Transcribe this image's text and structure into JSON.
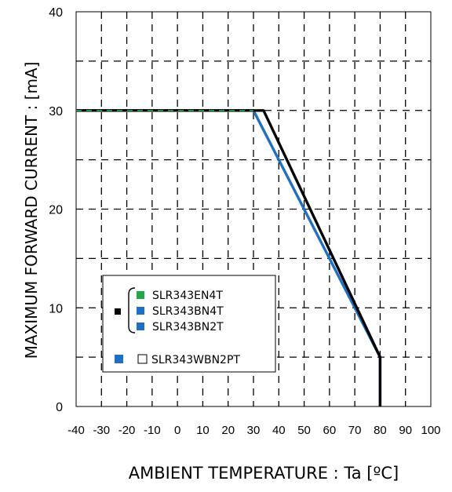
{
  "chart_data": {
    "type": "line",
    "xlabel": "AMBIENT TEMPERATURE : Ta [ºC]",
    "ylabel": "MAXIMUM FORWARD CURRENT :  [mA]",
    "xlim": [
      -40,
      100
    ],
    "ylim": [
      0,
      40
    ],
    "x_ticks": [
      -40,
      -30,
      -20,
      -10,
      0,
      10,
      20,
      30,
      40,
      50,
      60,
      70,
      80,
      90,
      100
    ],
    "x_tick_labels": [
      "-40",
      "-30",
      "-20",
      "-10",
      "0",
      "10",
      "20",
      "30",
      "40",
      "50",
      "60",
      "70",
      "80",
      "90",
      "100"
    ],
    "y_ticks": [
      0,
      10,
      20,
      30,
      40
    ],
    "y_tick_labels": [
      "0",
      "10",
      "20",
      "30",
      "40"
    ],
    "grid": "dashed",
    "legend_position": "lower-left",
    "series": [
      {
        "name": "SLR343EN4T / SLR343BN4T / SLR343BN2T",
        "color": "#000000",
        "points": [
          [
            -40,
            30
          ],
          [
            34,
            30
          ],
          [
            80,
            5
          ],
          [
            80,
            0
          ]
        ]
      },
      {
        "name": "SLR343WBN2PT",
        "color": "#1f6fc7",
        "points": [
          [
            -40,
            30
          ],
          [
            30,
            30
          ],
          [
            80,
            5
          ],
          [
            80,
            0
          ]
        ]
      },
      {
        "name": "",
        "color": "#22a846",
        "points": [
          [
            -40,
            30
          ],
          [
            30,
            30
          ]
        ]
      }
    ],
    "legend": {
      "group_marker_color": "#000000",
      "group_entries": [
        {
          "label": "SLR343EN4T",
          "color": "#22a846"
        },
        {
          "label": "SLR343BN4T",
          "color": "#1f6fc7"
        },
        {
          "label": "SLR343BN2T",
          "color": "#1f6fc7"
        }
      ],
      "single_entry": {
        "label": "SLR343WBN2PT",
        "marker_color": "#1f6fc7",
        "box": "hollow"
      }
    }
  }
}
